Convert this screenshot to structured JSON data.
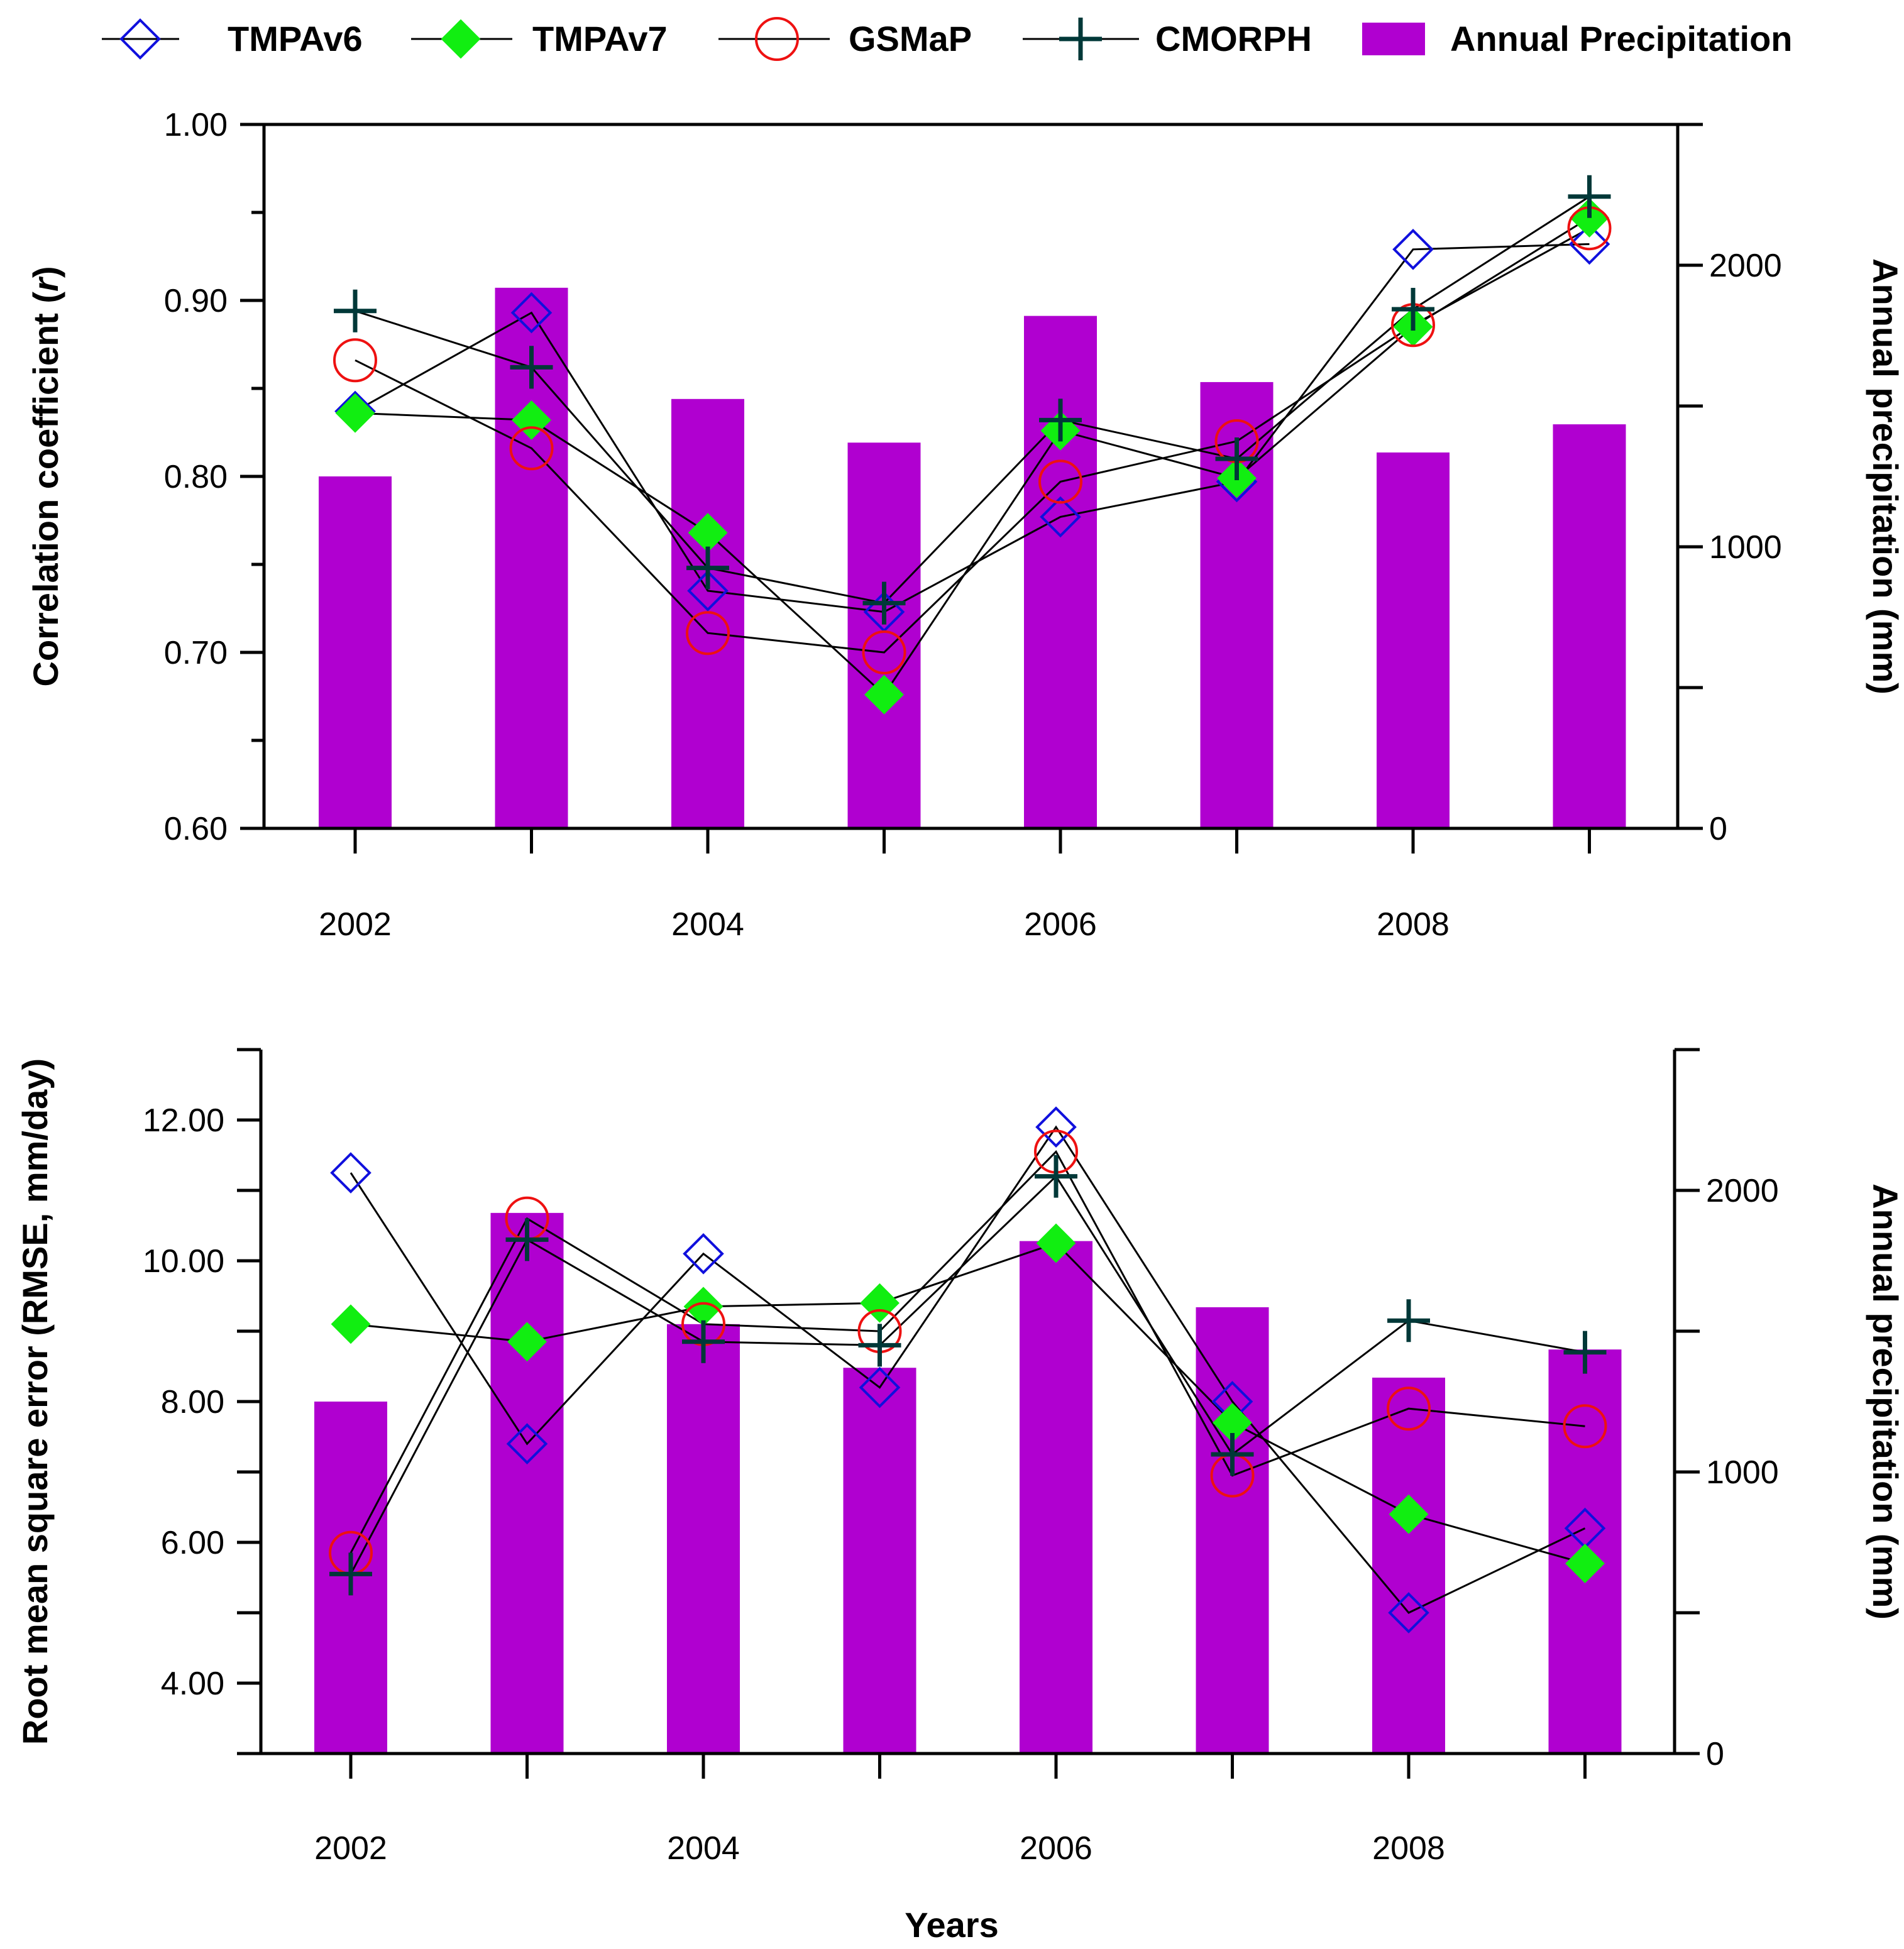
{
  "legend": [
    {
      "key": "tmpav6",
      "label": "TMPAv6"
    },
    {
      "key": "tmpav7",
      "label": "TMPAv7"
    },
    {
      "key": "gsmap",
      "label": "GSMaP"
    },
    {
      "key": "cmorph",
      "label": "CMORPH"
    },
    {
      "key": "annual",
      "label": "Annual Precipitation"
    }
  ],
  "x_axis_title": "Years",
  "colors": {
    "bar": "#b000d0",
    "tmpav6": "#1010dd",
    "tmpav7": "#11ee11",
    "gsmap": "#ee1111",
    "cmorph": "#003838",
    "line": "#000000"
  },
  "chart_data": [
    {
      "type": "bar+line",
      "id": "correlation",
      "ylabel": "Correlation coefficient (r)",
      "ylabel_parts": [
        "Correlation coefficient (",
        "r",
        ")"
      ],
      "y2label": "Annual precipitation (mm)",
      "x": [
        2002,
        2003,
        2004,
        2005,
        2006,
        2007,
        2008,
        2009
      ],
      "x_tick_labels": [
        "2002",
        "2004",
        "2006",
        "2008"
      ],
      "ylim": [
        0.6,
        1.0
      ],
      "y_ticks": [
        0.6,
        0.7,
        0.8,
        0.9,
        1.0
      ],
      "y_tick_labels": [
        "0.60",
        "0.70",
        "0.80",
        "0.90",
        "1.00"
      ],
      "y2lim": [
        0,
        2500
      ],
      "y2_ticks": [
        0,
        500,
        1000,
        1500,
        2000,
        2500
      ],
      "y2_tick_labels": [
        "0",
        "1000",
        "2000"
      ],
      "bars": {
        "name": "Annual Precipitation",
        "values": [
          1250,
          1920,
          1525,
          1370,
          1820,
          1585,
          1335,
          1435
        ]
      },
      "series": [
        {
          "key": "tmpav6",
          "name": "TMPAv6",
          "values": [
            0.837,
            0.893,
            0.735,
            0.723,
            0.777,
            0.797,
            0.929,
            0.932
          ]
        },
        {
          "key": "tmpav7",
          "name": "TMPAv7",
          "values": [
            0.836,
            0.832,
            0.768,
            0.676,
            0.826,
            0.799,
            0.885,
            0.947
          ]
        },
        {
          "key": "gsmap",
          "name": "GSMaP",
          "values": [
            0.866,
            0.816,
            0.711,
            0.7,
            0.797,
            0.82,
            0.886,
            0.941
          ]
        },
        {
          "key": "cmorph",
          "name": "CMORPH",
          "values": [
            0.894,
            0.862,
            0.748,
            0.728,
            0.832,
            0.81,
            0.895,
            0.959
          ]
        }
      ]
    },
    {
      "type": "bar+line",
      "id": "rmse",
      "ylabel": "Root mean square error (RMSE, mm/day)",
      "y2label": "Annual precipitation (mm)",
      "x": [
        2002,
        2003,
        2004,
        2005,
        2006,
        2007,
        2008,
        2009
      ],
      "x_tick_labels": [
        "2002",
        "2004",
        "2006",
        "2008"
      ],
      "ylim": [
        3.0,
        13.0
      ],
      "y_ticks": [
        3,
        4,
        5,
        6,
        7,
        8,
        9,
        10,
        11,
        12,
        13
      ],
      "y_tick_labels": [
        "4.00",
        "6.00",
        "8.00",
        "10.00",
        "12.00"
      ],
      "y_tick_label_values": [
        4,
        6,
        8,
        10,
        12
      ],
      "y2lim": [
        0,
        2500
      ],
      "y2_ticks": [
        0,
        500,
        1000,
        1500,
        2000,
        2500
      ],
      "y2_tick_labels": [
        "0",
        "1000",
        "2000"
      ],
      "bars": {
        "name": "Annual Precipitation",
        "values": [
          1250,
          1920,
          1525,
          1370,
          1820,
          1585,
          1335,
          1435
        ]
      },
      "series": [
        {
          "key": "tmpav6",
          "name": "TMPAv6",
          "values": [
            11.25,
            7.4,
            10.1,
            8.2,
            11.9,
            8.0,
            5.0,
            6.2
          ]
        },
        {
          "key": "tmpav7",
          "name": "TMPAv7",
          "values": [
            9.1,
            8.85,
            9.35,
            9.4,
            10.25,
            7.7,
            6.4,
            5.7
          ]
        },
        {
          "key": "gsmap",
          "name": "GSMaP",
          "values": [
            5.85,
            10.6,
            9.1,
            9.0,
            11.55,
            6.95,
            7.9,
            7.65
          ]
        },
        {
          "key": "cmorph",
          "name": "CMORPH",
          "values": [
            5.55,
            10.3,
            8.85,
            8.8,
            11.2,
            7.25,
            9.15,
            8.7
          ]
        }
      ]
    }
  ]
}
